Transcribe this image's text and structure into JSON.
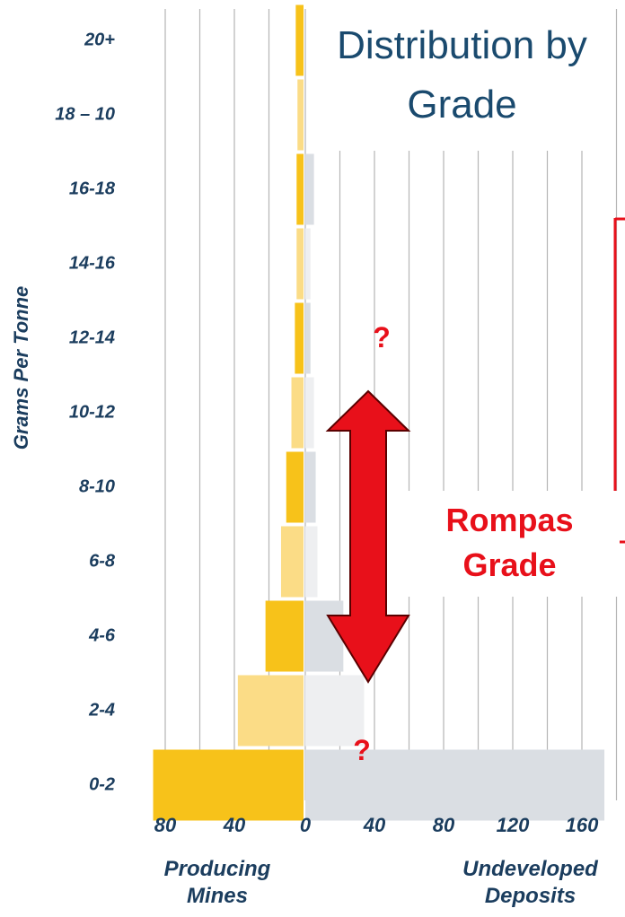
{
  "chart_data": {
    "type": "butterfly-bar",
    "title": "Distribution by Grade",
    "y_label": "Grams Per Tonne",
    "categories": [
      "20+",
      "18 – 10",
      "16-18",
      "14-16",
      "12-14",
      "10-12",
      "8-10",
      "6-8",
      "4-6",
      "2-4",
      "0-2"
    ],
    "left": {
      "xlim": [
        0,
        90
      ],
      "xticks": [
        80,
        40
      ],
      "minor_ticks": [
        20,
        40,
        60,
        80
      ]
    },
    "right": {
      "xlim": [
        0,
        180
      ],
      "xticks": [
        0,
        40,
        80,
        120,
        160
      ],
      "minor_ticks": [
        0,
        20,
        40,
        60,
        80,
        100,
        120,
        140,
        160,
        180
      ]
    },
    "grid": true,
    "series": [
      {
        "name": "Producing Mines",
        "side": "left",
        "colors": [
          "#f7c21a",
          "#fbdc86",
          "#f7c21a",
          "#fbdc86",
          "#f7c21a",
          "#fbdc86",
          "#f7c21a",
          "#fbdc86",
          "#f7c21a",
          "#fbdc86",
          "#f7c21a"
        ],
        "values": [
          4.5,
          3.5,
          4,
          4,
          5,
          7,
          10,
          13,
          22,
          38,
          87
        ]
      },
      {
        "name": "Undeveloped Deposits",
        "side": "right",
        "colors": [
          "#dadee3",
          "#eeeff1",
          "#dadee3",
          "#eeeff1",
          "#dadee3",
          "#eeeff1",
          "#dadee3",
          "#eeeff1",
          "#dadee3",
          "#eeeff1",
          "#dadee3"
        ],
        "values": [
          0,
          0,
          5,
          3,
          3,
          5,
          6,
          7,
          22,
          34,
          173
        ]
      }
    ],
    "annotations": [
      "?",
      "?",
      "Rompas Grade"
    ]
  }
}
